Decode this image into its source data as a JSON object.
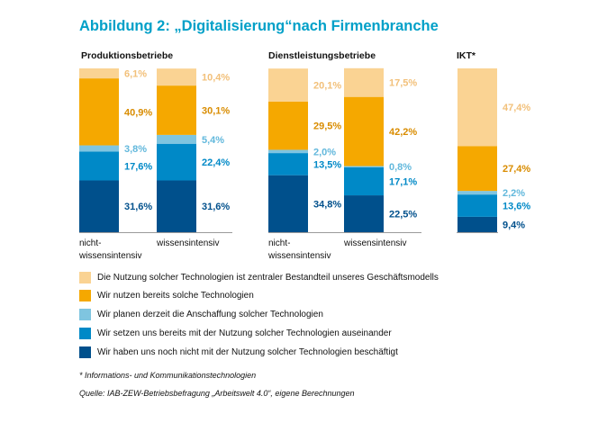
{
  "title": "Abbildung 2: „Digitalisierung“nach Firmenbranche",
  "groups": [
    {
      "label": "Produktionsbetriebe"
    },
    {
      "label": "Dienstleistungsbetriebe"
    },
    {
      "label": "IKT*"
    }
  ],
  "legend": [
    {
      "label": "Die Nutzung solcher Technologien ist zentraler Bestandteil unseres Geschäftsmodells",
      "color": "#fad393"
    },
    {
      "label": "Wir nutzen bereits solche Technologien",
      "color": "#f5a800"
    },
    {
      "label": "Wir planen derzeit die Anschaffung solcher Technologien",
      "color": "#7fc5e0"
    },
    {
      "label": "Wir setzen uns bereits mit der Nutzung solcher Technologien auseinander",
      "color": "#0089c7"
    },
    {
      "label": "Wir haben uns noch nicht mit der Nutzung solcher Technologien beschäftigt",
      "color": "#00508c"
    }
  ],
  "footnote": "* Informations- und Kommunikationstechnologien",
  "source": "Quelle: IAB-ZEW-Betriebsbefragung „Arbeitswelt 4.0“, eigene Berechnungen",
  "chart_data": {
    "type": "bar",
    "stacked": true,
    "title": "Abbildung 2: „Digitalisierung“nach Firmenbranche",
    "categories": [
      "nicht-wissensintensiv",
      "wissensintensiv",
      "nicht-wissensintensiv",
      "wissensintensiv",
      "IKT*"
    ],
    "category_labels": [
      [
        "nicht-",
        "wissensintensiv"
      ],
      [
        "wissensintensiv"
      ],
      [
        "nicht-",
        "wissensintensiv"
      ],
      [
        "wissensintensiv"
      ],
      []
    ],
    "category_groups": [
      "Produktionsbetriebe",
      "Produktionsbetriebe",
      "Dienstleistungsbetriebe",
      "Dienstleistungsbetriebe",
      "IKT*"
    ],
    "series": [
      {
        "name": "Wir haben uns noch nicht mit der Nutzung solcher Technologien beschäftigt",
        "color": "#00508c",
        "values": [
          31.6,
          31.6,
          34.8,
          22.5,
          9.4
        ],
        "labels": [
          "31,6%",
          "31,6%",
          "34,8%",
          "22,5%",
          "9,4%"
        ]
      },
      {
        "name": "Wir setzen uns bereits mit der Nutzung solcher Technologien auseinander",
        "color": "#0089c7",
        "values": [
          17.6,
          22.4,
          13.5,
          17.1,
          13.6
        ],
        "labels": [
          "17,6%",
          "22,4%",
          "13,5%",
          "17,1%",
          "13,6%"
        ]
      },
      {
        "name": "Wir planen derzeit die Anschaffung solcher Technologien",
        "color": "#7fc5e0",
        "values": [
          3.8,
          5.4,
          2.0,
          0.8,
          2.2
        ],
        "labels": [
          "3,8%",
          "5,4%",
          "2,0%",
          "0,8%",
          "2,2%"
        ]
      },
      {
        "name": "Wir nutzen bereits solche Technologien",
        "color": "#f5a800",
        "values": [
          40.9,
          30.1,
          29.5,
          42.2,
          27.4
        ],
        "labels": [
          "40,9%",
          "30,1%",
          "29,5%",
          "42,2%",
          "27,4%"
        ]
      },
      {
        "name": "Die Nutzung solcher Technologien ist zentraler Bestandteil unseres Geschäftsmodells",
        "color": "#fad393",
        "values": [
          6.1,
          10.4,
          20.1,
          17.5,
          47.4
        ],
        "labels": [
          "6,1%",
          "10,4%",
          "20,1%",
          "17,5%",
          "47,4%"
        ]
      }
    ],
    "ylim": [
      0,
      100
    ],
    "xlabel": "",
    "ylabel": "",
    "legend": "bottom"
  }
}
